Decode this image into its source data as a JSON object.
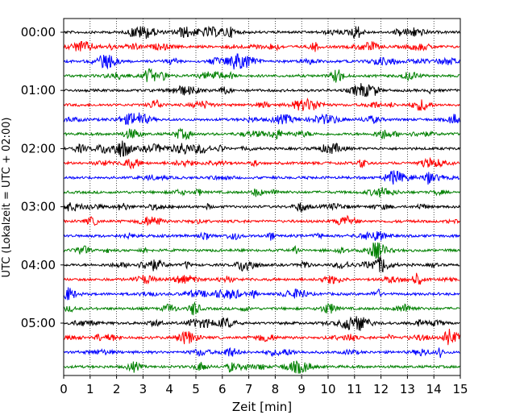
{
  "chart_data": {
    "type": "line",
    "title": "",
    "xlabel": "Zeit  [min]",
    "ylabel": "UTC (Lokalzeit = UTC + 02:00)",
    "xlim": [
      0,
      15
    ],
    "x_ticks": [
      "0",
      "1",
      "2",
      "3",
      "4",
      "5",
      "6",
      "7",
      "8",
      "9",
      "10",
      "11",
      "12",
      "13",
      "14",
      "15"
    ],
    "y_tick_labels": [
      "00:00",
      "01:00",
      "02:00",
      "03:00",
      "04:00",
      "05:00"
    ],
    "trace_interval_min": 15,
    "trace_count": 24,
    "color_cycle": [
      "#000000",
      "#ff0000",
      "#0000ff",
      "#008000"
    ],
    "grid": "vertical dotted lines at each minute",
    "legend": "none"
  }
}
